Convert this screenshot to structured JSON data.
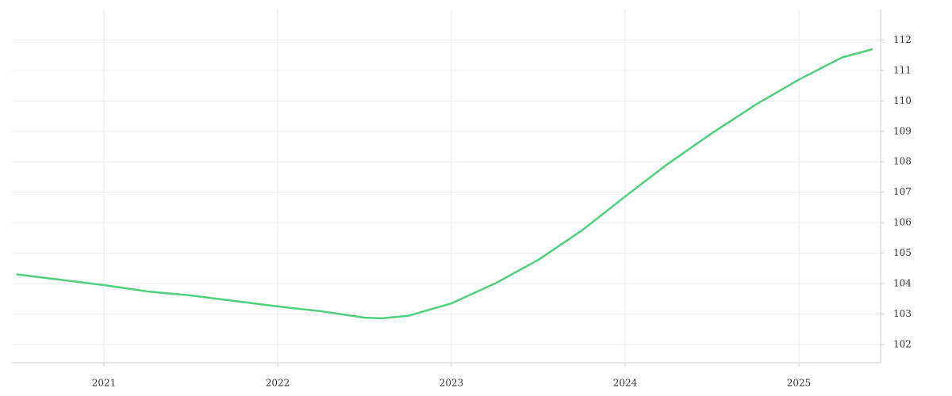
{
  "chart_data": {
    "type": "line",
    "x": [
      2020.5,
      2021.0,
      2021.25,
      2021.5,
      2021.75,
      2022.0,
      2022.25,
      2022.5,
      2022.6,
      2022.75,
      2023.0,
      2023.25,
      2023.5,
      2023.75,
      2024.0,
      2024.25,
      2024.5,
      2024.75,
      2025.0,
      2025.25,
      2025.42
    ],
    "series": [
      {
        "color": "#4fd17b",
        "values": [
          104.3,
          103.95,
          103.74,
          103.61,
          103.43,
          103.25,
          103.09,
          102.88,
          102.86,
          102.94,
          103.35,
          104.0,
          104.78,
          105.74,
          106.86,
          107.95,
          108.94,
          109.87,
          110.7,
          111.43,
          111.69
        ]
      }
    ],
    "xlim": [
      2020.47,
      2025.47
    ],
    "xticks": [
      2021,
      2022,
      2023,
      2024,
      2025
    ],
    "ylim": [
      101.4,
      113.0
    ],
    "yticks": [
      102,
      103,
      104,
      105,
      106,
      107,
      108,
      109,
      110,
      111,
      112
    ],
    "grid": true,
    "y_axis_side": "right"
  }
}
